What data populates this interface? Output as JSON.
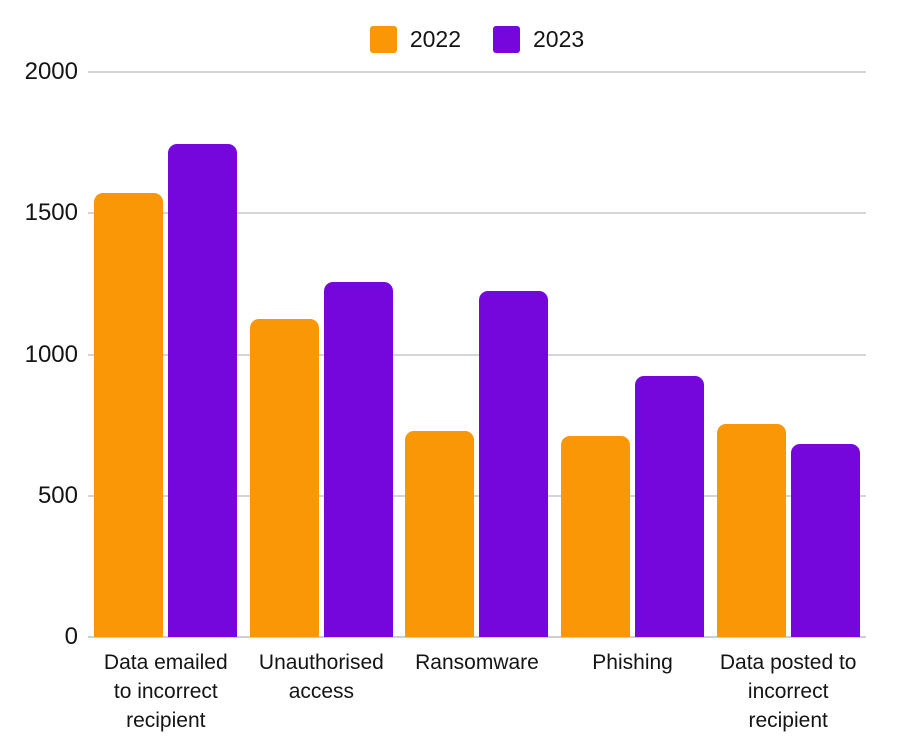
{
  "chart_data": {
    "type": "bar",
    "title": "",
    "categories": [
      "Data emailed to incorrect recipient",
      "Unauthorised access",
      "Ransomware",
      "Phishing",
      "Data posted to incorrect recipient"
    ],
    "series": [
      {
        "name": "2022",
        "color": "#F99706",
        "values": [
          1570,
          1125,
          730,
          710,
          755
        ]
      },
      {
        "name": "2023",
        "color": "#7607DC",
        "values": [
          1745,
          1255,
          1225,
          925,
          685
        ]
      }
    ],
    "ylabel": "",
    "xlabel": "",
    "ylim": [
      0,
      2000
    ],
    "yticks": [
      0,
      500,
      1000,
      1500,
      2000
    ],
    "grid": true,
    "legend_position": "top-center",
    "colors": {
      "background": "#ffffff",
      "gridline": "#d5d5d5",
      "text": "#141414"
    }
  }
}
